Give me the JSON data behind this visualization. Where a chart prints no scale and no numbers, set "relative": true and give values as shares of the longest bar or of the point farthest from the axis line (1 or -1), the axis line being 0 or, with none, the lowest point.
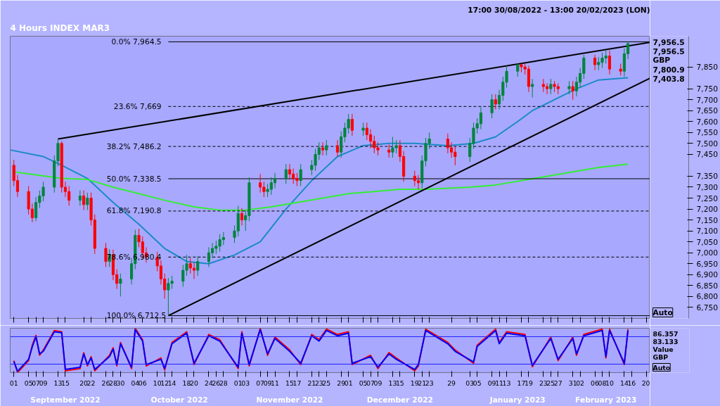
{
  "chart_data": [
    {
      "type": "candlestick",
      "title": "4 Hours INDEX MAR3",
      "subtitle": "17:00 30/08/2022 - 13:00 20/02/2023 (LON)",
      "x": [
        "2022-09-01",
        "2022-09-02",
        "2022-09-05",
        "2022-09-06",
        "2022-09-07",
        "2022-09-08",
        "2022-09-09",
        "2022-09-12",
        "2022-09-13",
        "2022-09-14",
        "2022-09-15",
        "2022-09-16",
        "2022-09-19",
        "2022-09-20",
        "2022-09-21",
        "2022-09-22",
        "2022-09-23",
        "2022-09-26",
        "2022-09-27",
        "2022-09-28",
        "2022-09-29",
        "2022-09-30",
        "2022-10-03",
        "2022-10-04",
        "2022-10-05",
        "2022-10-06",
        "2022-10-07",
        "2022-10-10",
        "2022-10-11",
        "2022-10-12",
        "2022-10-13",
        "2022-10-14",
        "2022-10-17",
        "2022-10-18",
        "2022-10-19",
        "2022-10-20",
        "2022-10-21",
        "2022-10-24",
        "2022-10-25",
        "2022-10-26",
        "2022-10-27",
        "2022-10-28",
        "2022-10-31",
        "2022-11-01",
        "2022-11-02",
        "2022-11-03",
        "2022-11-04",
        "2022-11-07",
        "2022-11-08",
        "2022-11-09",
        "2022-11-10",
        "2022-11-11",
        "2022-11-14",
        "2022-11-15",
        "2022-11-16",
        "2022-11-17",
        "2022-11-18",
        "2022-11-21",
        "2022-11-22",
        "2022-11-23",
        "2022-11-24",
        "2022-11-25",
        "2022-11-28",
        "2022-11-29",
        "2022-11-30",
        "2022-12-01",
        "2022-12-02",
        "2022-12-05",
        "2022-12-06",
        "2022-12-07",
        "2022-12-08",
        "2022-12-09",
        "2022-12-12",
        "2022-12-13",
        "2022-12-14",
        "2022-12-15",
        "2022-12-16",
        "2022-12-19",
        "2022-12-20",
        "2022-12-21",
        "2022-12-22",
        "2022-12-23",
        "2022-12-28",
        "2022-12-29",
        "2022-12-30",
        "2023-01-03",
        "2023-01-04",
        "2023-01-05",
        "2023-01-06",
        "2023-01-09",
        "2023-01-10",
        "2023-01-11",
        "2023-01-12",
        "2023-01-13",
        "2023-01-16",
        "2023-01-17",
        "2023-01-18",
        "2023-01-19",
        "2023-01-20",
        "2023-01-23",
        "2023-01-24",
        "2023-01-25",
        "2023-01-26",
        "2023-01-27",
        "2023-01-30",
        "2023-01-31",
        "2023-02-01",
        "2023-02-02",
        "2023-02-03",
        "2023-02-06",
        "2023-02-07",
        "2023-02-08",
        "2023-02-09",
        "2023-02-10",
        "2023-02-13",
        "2023-02-14",
        "2023-02-15"
      ],
      "ohlc": [
        [
          7400,
          7425,
          7305,
          7330
        ],
        [
          7330,
          7355,
          7255,
          7280
        ],
        [
          7280,
          7305,
          7175,
          7200
        ],
        [
          7200,
          7225,
          7140,
          7160
        ],
        [
          7160,
          7255,
          7145,
          7230
        ],
        [
          7230,
          7285,
          7205,
          7260
        ],
        [
          7260,
          7325,
          7235,
          7300
        ],
        [
          7300,
          7445,
          7275,
          7420
        ],
        [
          7420,
          7520,
          7395,
          7500
        ],
        [
          7500,
          7510,
          7275,
          7300
        ],
        [
          7300,
          7325,
          7255,
          7280
        ],
        [
          7280,
          7305,
          7215,
          7240
        ],
        [
          7240,
          7285,
          7215,
          7260
        ],
        [
          7260,
          7285,
          7195,
          7220
        ],
        [
          7220,
          7275,
          7195,
          7250
        ],
        [
          7250,
          7275,
          7125,
          7150
        ],
        [
          7150,
          7175,
          6995,
          7020
        ],
        [
          7020,
          7045,
          6935,
          6960
        ],
        [
          6960,
          7015,
          6935,
          6990
        ],
        [
          6990,
          7015,
          6875,
          6900
        ],
        [
          6900,
          6925,
          6835,
          6860
        ],
        [
          6860,
          6905,
          6800,
          6880
        ],
        [
          6880,
          6975,
          6855,
          6950
        ],
        [
          6950,
          7105,
          6925,
          7080
        ],
        [
          7080,
          7110,
          7025,
          7050
        ],
        [
          7050,
          7075,
          6975,
          7000
        ],
        [
          7000,
          7025,
          6955,
          6980
        ],
        [
          6980,
          7005,
          6915,
          6940
        ],
        [
          6940,
          6965,
          6855,
          6880
        ],
        [
          6880,
          6905,
          6790,
          6830
        ],
        [
          6830,
          6885,
          6712.5,
          6860
        ],
        [
          6860,
          6895,
          6835,
          6870
        ],
        [
          6870,
          6945,
          6845,
          6920
        ],
        [
          6920,
          6990,
          6895,
          6950
        ],
        [
          6950,
          6975,
          6905,
          6930
        ],
        [
          6930,
          6955,
          6880,
          6920
        ],
        [
          6920,
          6985,
          6895,
          6960
        ],
        [
          6960,
          7025,
          6935,
          7000
        ],
        [
          7000,
          7045,
          6975,
          7020
        ],
        [
          7020,
          7055,
          6995,
          7030
        ],
        [
          7030,
          7085,
          7005,
          7060
        ],
        [
          7060,
          7095,
          7035,
          7070
        ],
        [
          7070,
          7125,
          7045,
          7100
        ],
        [
          7100,
          7215,
          7075,
          7180
        ],
        [
          7180,
          7205,
          7125,
          7150
        ],
        [
          7150,
          7195,
          7100,
          7170
        ],
        [
          7170,
          7345,
          7145,
          7320
        ],
        [
          7320,
          7360,
          7275,
          7300
        ],
        [
          7300,
          7325,
          7255,
          7280
        ],
        [
          7280,
          7315,
          7255,
          7290
        ],
        [
          7290,
          7345,
          7265,
          7320
        ],
        [
          7320,
          7365,
          7295,
          7340
        ],
        [
          7340,
          7405,
          7315,
          7380
        ],
        [
          7380,
          7405,
          7335,
          7360
        ],
        [
          7360,
          7385,
          7315,
          7340
        ],
        [
          7340,
          7365,
          7305,
          7330
        ],
        [
          7330,
          7405,
          7305,
          7380
        ],
        [
          7380,
          7425,
          7355,
          7400
        ],
        [
          7400,
          7475,
          7375,
          7450
        ],
        [
          7450,
          7505,
          7425,
          7480
        ],
        [
          7480,
          7505,
          7445,
          7470
        ],
        [
          7470,
          7515,
          7445,
          7490
        ],
        [
          7490,
          7515,
          7440,
          7460
        ],
        [
          7460,
          7555,
          7435,
          7530
        ],
        [
          7530,
          7595,
          7505,
          7570
        ],
        [
          7570,
          7635,
          7545,
          7610
        ],
        [
          7610,
          7635,
          7535,
          7560
        ],
        [
          7560,
          7595,
          7535,
          7570
        ],
        [
          7570,
          7595,
          7515,
          7540
        ],
        [
          7540,
          7565,
          7478,
          7510
        ],
        [
          7510,
          7535,
          7455,
          7480
        ],
        [
          7480,
          7505,
          7445,
          7470
        ],
        [
          7470,
          7495,
          7435,
          7460
        ],
        [
          7460,
          7530,
          7435,
          7480
        ],
        [
          7480,
          7515,
          7455,
          7490
        ],
        [
          7490,
          7515,
          7415,
          7440
        ],
        [
          7440,
          7465,
          7325,
          7350
        ],
        [
          7350,
          7375,
          7305,
          7330
        ],
        [
          7330,
          7355,
          7290,
          7320
        ],
        [
          7320,
          7445,
          7295,
          7420
        ],
        [
          7420,
          7525,
          7395,
          7500
        ],
        [
          7500,
          7550,
          7475,
          7520
        ],
        [
          7520,
          7545,
          7455,
          7480
        ],
        [
          7480,
          7505,
          7435,
          7460
        ],
        [
          7460,
          7485,
          7400,
          7440
        ],
        [
          7440,
          7525,
          7415,
          7500
        ],
        [
          7500,
          7595,
          7475,
          7570
        ],
        [
          7570,
          7615,
          7545,
          7590
        ],
        [
          7590,
          7665,
          7565,
          7640
        ],
        [
          7640,
          7725,
          7615,
          7700
        ],
        [
          7700,
          7725,
          7655,
          7680
        ],
        [
          7680,
          7745,
          7655,
          7720
        ],
        [
          7720,
          7805,
          7695,
          7780
        ],
        [
          7780,
          7855,
          7755,
          7830
        ],
        [
          7830,
          7865,
          7805,
          7860
        ],
        [
          7860,
          7865,
          7825,
          7850
        ],
        [
          7850,
          7865,
          7815,
          7840
        ],
        [
          7840,
          7855,
          7735,
          7760
        ],
        [
          7760,
          7795,
          7710,
          7770
        ],
        [
          7770,
          7795,
          7735,
          7760
        ],
        [
          7760,
          7775,
          7725,
          7750
        ],
        [
          7750,
          7795,
          7725,
          7770
        ],
        [
          7770,
          7785,
          7735,
          7760
        ],
        [
          7760,
          7775,
          7725,
          7750
        ],
        [
          7750,
          7785,
          7725,
          7760
        ],
        [
          7760,
          7785,
          7700,
          7740
        ],
        [
          7740,
          7805,
          7715,
          7780
        ],
        [
          7780,
          7845,
          7755,
          7820
        ],
        [
          7820,
          7905,
          7795,
          7890
        ],
        [
          7890,
          7905,
          7835,
          7860
        ],
        [
          7860,
          7895,
          7835,
          7870
        ],
        [
          7870,
          7915,
          7845,
          7890
        ],
        [
          7890,
          7925,
          7865,
          7900
        ],
        [
          7900,
          7925,
          7815,
          7840
        ],
        [
          7840,
          7865,
          7810,
          7830
        ],
        [
          7830,
          7935,
          7805,
          7910
        ],
        [
          7910,
          7964.5,
          7885,
          7956.5
        ]
      ],
      "colors": [
        "#ff0000",
        "#ff0000",
        "#ff0000",
        "#ff0000",
        "#00843d",
        "#00843d",
        "#00843d",
        "#00843d",
        "#00843d",
        "#ff0000",
        "#ff0000",
        "#ff0000",
        "#00843d",
        "#ff0000",
        "#00843d",
        "#ff0000",
        "#ff0000",
        "#ff0000",
        "#00843d",
        "#ff0000",
        "#ff0000",
        "#00843d",
        "#00843d",
        "#00843d",
        "#ff0000",
        "#ff0000",
        "#ff0000",
        "#ff0000",
        "#ff0000",
        "#ff0000",
        "#00843d",
        "#00843d",
        "#00843d",
        "#00843d",
        "#ff0000",
        "#ff0000",
        "#00843d",
        "#00843d",
        "#00843d",
        "#00843d",
        "#00843d",
        "#00843d",
        "#00843d",
        "#00843d",
        "#ff0000",
        "#00843d",
        "#00843d",
        "#ff0000",
        "#ff0000",
        "#00843d",
        "#00843d",
        "#00843d",
        "#00843d",
        "#ff0000",
        "#ff0000",
        "#ff0000",
        "#00843d",
        "#00843d",
        "#00843d",
        "#00843d",
        "#ff0000",
        "#00843d",
        "#ff0000",
        "#00843d",
        "#00843d",
        "#00843d",
        "#ff0000",
        "#00843d",
        "#ff0000",
        "#ff0000",
        "#ff0000",
        "#ff0000",
        "#ff0000",
        "#00843d",
        "#00843d",
        "#ff0000",
        "#ff0000",
        "#ff0000",
        "#ff0000",
        "#00843d",
        "#00843d",
        "#00843d",
        "#ff0000",
        "#ff0000",
        "#ff0000",
        "#00843d",
        "#00843d",
        "#00843d",
        "#00843d",
        "#00843d",
        "#ff0000",
        "#00843d",
        "#00843d",
        "#00843d",
        "#00843d",
        "#ff0000",
        "#ff0000",
        "#ff0000",
        "#00843d",
        "#ff0000",
        "#ff0000",
        "#00843d",
        "#ff0000",
        "#ff0000",
        "#00843d",
        "#ff0000",
        "#00843d",
        "#00843d",
        "#00843d",
        "#ff0000",
        "#00843d",
        "#00843d",
        "#00843d",
        "#ff0000",
        "#ff0000",
        "#00843d",
        "#00843d"
      ],
      "series": [
        {
          "type": "line",
          "color": "#1a8ac6",
          "x": [
            "2022-08-31",
            "2022-09-09",
            "2022-09-14",
            "2022-09-21",
            "2022-09-28",
            "2022-10-05",
            "2022-10-12",
            "2022-10-18",
            "2022-10-24",
            "2022-10-31",
            "2022-11-07",
            "2022-11-14",
            "2022-11-21",
            "2022-11-28",
            "2022-12-05",
            "2022-12-12",
            "2022-12-19",
            "2022-12-28",
            "2023-01-04",
            "2023-01-10",
            "2023-01-16",
            "2023-01-20",
            "2023-01-26",
            "2023-02-01",
            "2023-02-07",
            "2023-02-15"
          ],
          "values": [
            7470,
            7440,
            7400,
            7340,
            7230,
            7130,
            7020,
            6960,
            6950,
            6990,
            7050,
            7200,
            7330,
            7440,
            7490,
            7500,
            7500,
            7490,
            7500,
            7530,
            7600,
            7650,
            7700,
            7750,
            7790,
            7800
          ]
        },
        {
          "type": "line",
          "color": "#33ee33",
          "x": [
            "2022-09-01",
            "2022-09-14",
            "2022-09-21",
            "2022-09-28",
            "2022-10-05",
            "2022-10-12",
            "2022-10-20",
            "2022-10-27",
            "2022-11-03",
            "2022-11-10",
            "2022-11-17",
            "2022-11-24",
            "2022-12-01",
            "2022-12-08",
            "2022-12-15",
            "2022-12-22",
            "2023-01-03",
            "2023-01-10",
            "2023-01-17",
            "2023-01-24",
            "2023-01-31",
            "2023-02-07",
            "2023-02-15"
          ],
          "values": [
            7370,
            7340,
            7335,
            7300,
            7270,
            7240,
            7210,
            7195,
            7195,
            7210,
            7230,
            7250,
            7270,
            7280,
            7290,
            7290,
            7300,
            7310,
            7330,
            7350,
            7370,
            7390,
            7405
          ]
        },
        {
          "type": "line",
          "color": "#000000",
          "x": [
            "2022-09-13",
            "2023-02-21"
          ],
          "values": [
            7520,
            7962
          ]
        },
        {
          "type": "line",
          "color": "#000000",
          "x": [
            "2022-10-13",
            "2023-02-21"
          ],
          "values": [
            6712.5,
            7798
          ]
        }
      ],
      "xlim": [
        "2022-08-31",
        "2023-02-21"
      ],
      "ylim": [
        6700,
        7990
      ],
      "xticks": [
        {
          "value": "2022-09-01",
          "label": null
        },
        {
          "value": "2022-09-05",
          "label": null
        },
        {
          "value": "2022-09-07",
          "label": null
        },
        {
          "value": "2022-09-09",
          "label": null
        },
        {
          "value": "2022-09-13",
          "label": null
        },
        {
          "value": "2022-09-15",
          "label": null
        },
        {
          "value": "2022-09-20",
          "label": null
        },
        {
          "value": "2022-09-22",
          "label": null
        },
        {
          "value": "2022-09-26",
          "label": null
        },
        {
          "value": "2022-09-28",
          "label": null
        },
        {
          "value": "2022-09-30",
          "label": null
        },
        {
          "value": "2022-10-04",
          "label": null
        },
        {
          "value": "2022-10-06",
          "label": null
        },
        {
          "value": "2022-10-10",
          "label": null
        },
        {
          "value": "2022-10-12",
          "label": null
        },
        {
          "value": "2022-10-14",
          "label": null
        },
        {
          "value": "2022-10-18",
          "label": null
        },
        {
          "value": "2022-10-20",
          "label": null
        },
        {
          "value": "2022-10-24",
          "label": null
        },
        {
          "value": "2022-10-26",
          "label": null
        },
        {
          "value": "2022-10-28",
          "label": null
        },
        {
          "value": "2022-11-01",
          "label": null
        },
        {
          "value": "2022-11-03",
          "label": null
        },
        {
          "value": "2022-11-07",
          "label": null
        },
        {
          "value": "2022-11-09",
          "label": null
        },
        {
          "value": "2022-11-11",
          "label": null
        },
        {
          "value": "2022-11-15",
          "label": null
        },
        {
          "value": "2022-11-17",
          "label": null
        },
        {
          "value": "2022-11-21",
          "label": null
        },
        {
          "value": "2022-11-23",
          "label": null
        },
        {
          "value": "2022-11-25",
          "label": null
        },
        {
          "value": "2022-11-29",
          "label": null
        },
        {
          "value": "2022-12-01",
          "label": null
        },
        {
          "value": "2022-12-05",
          "label": null
        },
        {
          "value": "2022-12-07",
          "label": null
        },
        {
          "value": "2022-12-09",
          "label": null
        },
        {
          "value": "2022-12-13",
          "label": null
        },
        {
          "value": "2022-12-15",
          "label": null
        },
        {
          "value": "2022-12-19",
          "label": null
        },
        {
          "value": "2022-12-21",
          "label": null
        },
        {
          "value": "2022-12-23",
          "label": null
        },
        {
          "value": "2022-12-29",
          "label": null
        },
        {
          "value": "2023-01-03",
          "label": null
        },
        {
          "value": "2023-01-05",
          "label": null
        },
        {
          "value": "2023-01-09",
          "label": null
        },
        {
          "value": "2023-01-11",
          "label": null
        },
        {
          "value": "2023-01-13",
          "label": null
        },
        {
          "value": "2023-01-17",
          "label": null
        },
        {
          "value": "2023-01-19",
          "label": null
        },
        {
          "value": "2023-01-23",
          "label": null
        },
        {
          "value": "2023-01-25",
          "label": null
        },
        {
          "value": "2023-01-27",
          "label": null
        },
        {
          "value": "2023-01-31",
          "label": null
        },
        {
          "value": "2023-02-02",
          "label": null
        },
        {
          "value": "2023-02-06",
          "label": null
        },
        {
          "value": "2023-02-08",
          "label": null
        },
        {
          "value": "2023-02-10",
          "label": null
        },
        {
          "value": "2023-02-14",
          "label": null
        },
        {
          "value": "2023-02-16",
          "label": null
        },
        {
          "value": "2023-02-20",
          "label": null
        }
      ],
      "yticks": [
        {
          "value": 6750,
          "label": "6,750"
        },
        {
          "value": 6800,
          "label": "6,800"
        },
        {
          "value": 6850,
          "label": "6,850"
        },
        {
          "value": 6900,
          "label": "6,900"
        },
        {
          "value": 6950,
          "label": "6,950"
        },
        {
          "value": 7000,
          "label": "7,000"
        },
        {
          "value": 7050,
          "label": "7,050"
        },
        {
          "value": 7100,
          "label": "7,100"
        },
        {
          "value": 7150,
          "label": "7,150"
        },
        {
          "value": 7200,
          "label": "7,200"
        },
        {
          "value": 7250,
          "label": "7,250"
        },
        {
          "value": 7300,
          "label": "7,300"
        },
        {
          "value": 7350,
          "label": "7,350"
        },
        {
          "value": 7450,
          "label": "7,450"
        },
        {
          "value": 7500,
          "label": "7,500"
        },
        {
          "value": 7550,
          "label": "7,550"
        },
        {
          "value": 7600,
          "label": "7,600"
        },
        {
          "value": 7650,
          "label": "7,650"
        },
        {
          "value": 7700,
          "label": "7,700"
        },
        {
          "value": 7750,
          "label": "7,750"
        },
        {
          "value": 7850,
          "label": "7,850"
        }
      ],
      "tick_labels": "y",
      "ref_lines": [
        {
          "axis": "y",
          "value": 7964.5,
          "label": "0.0%   7,964.5",
          "color": "#000000",
          "line_style": "solid"
        },
        {
          "axis": "y",
          "value": 7669,
          "label": "23.6%   7,669",
          "color": "#000000",
          "line_style": "dashed"
        },
        {
          "axis": "y",
          "value": 7486.2,
          "label": "38.2%   7,486.2",
          "color": "#000000",
          "line_style": "dashed"
        },
        {
          "axis": "y",
          "value": 7338.5,
          "label": "50.0%   7,338.5",
          "color": "#000000",
          "line_style": "solid"
        },
        {
          "axis": "y",
          "value": 7190.8,
          "label": "61.8%   7,190.8",
          "color": "#000000",
          "line_style": "dashed"
        },
        {
          "axis": "y",
          "value": 6980.4,
          "label": "78.6%   6,980.4",
          "color": "#000000",
          "line_style": "dashed"
        },
        {
          "axis": "y",
          "value": 6712.5,
          "label": "100.0% 6,712.5",
          "color": "#000000",
          "line_style": "solid"
        }
      ],
      "annotations": [
        "7,956.5",
        "7,956.5",
        "GBP",
        "7,800.9",
        "7,403.8",
        "Auto"
      ]
    },
    {
      "type": "line",
      "relative": true,
      "x": [
        "2022-09-01",
        "2022-09-02",
        "2022-09-05",
        "2022-09-06",
        "2022-09-07",
        "2022-09-08",
        "2022-09-09",
        "2022-09-12",
        "2022-09-14",
        "2022-09-15",
        "2022-09-19",
        "2022-09-20",
        "2022-09-21",
        "2022-09-22",
        "2022-09-23",
        "2022-09-27",
        "2022-09-28",
        "2022-09-29",
        "2022-09-30",
        "2022-10-03",
        "2022-10-04",
        "2022-10-06",
        "2022-10-07",
        "2022-10-11",
        "2022-10-12",
        "2022-10-14",
        "2022-10-18",
        "2022-10-20",
        "2022-10-24",
        "2022-10-27",
        "2022-11-01",
        "2022-11-02",
        "2022-11-04",
        "2022-11-07",
        "2022-11-09",
        "2022-11-11",
        "2022-11-15",
        "2022-11-18",
        "2022-11-21",
        "2022-11-23",
        "2022-11-25",
        "2022-11-28",
        "2022-12-01",
        "2022-12-02",
        "2022-12-07",
        "2022-12-09",
        "2022-12-12",
        "2022-12-14",
        "2022-12-19",
        "2022-12-20",
        "2022-12-22",
        "2022-12-28",
        "2022-12-30",
        "2023-01-04",
        "2023-01-05",
        "2023-01-10",
        "2023-01-11",
        "2023-01-13",
        "2023-01-18",
        "2023-01-20",
        "2023-01-25",
        "2023-01-27",
        "2023-01-31",
        "2023-02-01",
        "2023-02-03",
        "2023-02-08",
        "2023-02-09",
        "2023-02-10",
        "2023-02-14",
        "2023-02-15"
      ],
      "series": [
        {
          "color": "#ff0000",
          "values": [
            0.27,
            0,
            0.27,
            0.62,
            0.84,
            0.39,
            0.51,
            0.95,
            0.92,
            0.04,
            0.09,
            0.45,
            0.15,
            0.36,
            0.04,
            0.39,
            0.56,
            0.15,
            0.68,
            0.09,
            1,
            0.74,
            0.15,
            0.33,
            0.06,
            0.68,
            0.92,
            0.18,
            0.86,
            0.74,
            0.09,
            0.92,
            0.15,
            1,
            0.39,
            0.8,
            0.51,
            0.18,
            0.86,
            0.74,
            0.98,
            0.86,
            0.92,
            0.18,
            0.39,
            0.09,
            0.45,
            0.33,
            0.04,
            0.15,
            0.98,
            0.68,
            0.51,
            0.21,
            0.62,
            0.98,
            0.68,
            0.92,
            0.86,
            0.13,
            0.8,
            0.27,
            0.8,
            0.39,
            0.86,
            0.98,
            0.33,
            0.98,
            0.18,
            0.98
          ]
        },
        {
          "color": "#0000ff",
          "values": [
            0.25,
            0.03,
            0.3,
            0.58,
            0.81,
            0.42,
            0.48,
            0.92,
            0.9,
            0.07,
            0.12,
            0.42,
            0.18,
            0.33,
            0.07,
            0.36,
            0.53,
            0.18,
            0.65,
            0.12,
            0.97,
            0.71,
            0.18,
            0.3,
            0.09,
            0.65,
            0.89,
            0.21,
            0.83,
            0.71,
            0.12,
            0.89,
            0.18,
            0.97,
            0.42,
            0.77,
            0.48,
            0.21,
            0.83,
            0.71,
            0.95,
            0.83,
            0.89,
            0.21,
            0.36,
            0.12,
            0.42,
            0.3,
            0.07,
            0.18,
            0.95,
            0.65,
            0.48,
            0.24,
            0.59,
            0.95,
            0.65,
            0.89,
            0.83,
            0.16,
            0.77,
            0.3,
            0.77,
            0.42,
            0.83,
            0.95,
            0.36,
            0.95,
            0.21,
            0.95
          ]
        }
      ],
      "ref_lines": [
        {
          "axis": "y",
          "value": 0.81,
          "color": "#2020ff",
          "line_style": "solid"
        },
        {
          "axis": "y",
          "value": 0.19,
          "color": "#2020ff",
          "line_style": "solid"
        }
      ],
      "xlim": [
        "2022-08-31",
        "2023-02-21"
      ],
      "xticks": [
        {
          "value": "2022-09-01",
          "label": "01"
        },
        {
          "value": "2022-09-05",
          "label": "05"
        },
        {
          "value": "2022-09-07",
          "label": "07"
        },
        {
          "value": "2022-09-09",
          "label": "09"
        },
        {
          "value": "2022-09-13",
          "label": "13"
        },
        {
          "value": "2022-09-15",
          "label": "15"
        },
        {
          "value": "2022-09-20",
          "label": "20"
        },
        {
          "value": "2022-09-22",
          "label": "22"
        },
        {
          "value": "2022-09-26",
          "label": "26"
        },
        {
          "value": "2022-09-28",
          "label": "28"
        },
        {
          "value": "2022-09-30",
          "label": "30"
        },
        {
          "value": "2022-10-04",
          "label": "04"
        },
        {
          "value": "2022-10-06",
          "label": "06"
        },
        {
          "value": "2022-10-10",
          "label": "10"
        },
        {
          "value": "2022-10-12",
          "label": "12"
        },
        {
          "value": "2022-10-14",
          "label": "14"
        },
        {
          "value": "2022-10-18",
          "label": "18"
        },
        {
          "value": "2022-10-20",
          "label": "20"
        },
        {
          "value": "2022-10-24",
          "label": "24"
        },
        {
          "value": "2022-10-26",
          "label": "26"
        },
        {
          "value": "2022-10-28",
          "label": "28"
        },
        {
          "value": "2022-11-01",
          "label": "01"
        },
        {
          "value": "2022-11-03",
          "label": "03"
        },
        {
          "value": "2022-11-07",
          "label": "07"
        },
        {
          "value": "2022-11-09",
          "label": "09"
        },
        {
          "value": "2022-11-11",
          "label": "11"
        },
        {
          "value": "2022-11-15",
          "label": "15"
        },
        {
          "value": "2022-11-17",
          "label": "17"
        },
        {
          "value": "2022-11-21",
          "label": "21"
        },
        {
          "value": "2022-11-23",
          "label": "23"
        },
        {
          "value": "2022-11-25",
          "label": "25"
        },
        {
          "value": "2022-11-29",
          "label": "29"
        },
        {
          "value": "2022-12-01",
          "label": "01"
        },
        {
          "value": "2022-12-05",
          "label": "05"
        },
        {
          "value": "2022-12-07",
          "label": "07"
        },
        {
          "value": "2022-12-09",
          "label": "09"
        },
        {
          "value": "2022-12-13",
          "label": "13"
        },
        {
          "value": "2022-12-15",
          "label": "15"
        },
        {
          "value": "2022-12-19",
          "label": "19"
        },
        {
          "value": "2022-12-21",
          "label": "21"
        },
        {
          "value": "2022-12-23",
          "label": "23"
        },
        {
          "value": "2022-12-29",
          "label": "29"
        },
        {
          "value": "2023-01-03",
          "label": "03"
        },
        {
          "value": "2023-01-05",
          "label": "05"
        },
        {
          "value": "2023-01-09",
          "label": "09"
        },
        {
          "value": "2023-01-11",
          "label": "11"
        },
        {
          "value": "2023-01-13",
          "label": "13"
        },
        {
          "value": "2023-01-17",
          "label": "17"
        },
        {
          "value": "2023-01-19",
          "label": "19"
        },
        {
          "value": "2023-01-23",
          "label": "23"
        },
        {
          "value": "2023-01-25",
          "label": "25"
        },
        {
          "value": "2023-01-27",
          "label": "27"
        },
        {
          "value": "2023-01-31",
          "label": "31"
        },
        {
          "value": "2023-02-02",
          "label": "02"
        },
        {
          "value": "2023-02-06",
          "label": "06"
        },
        {
          "value": "2023-02-08",
          "label": "08"
        },
        {
          "value": "2023-02-10",
          "label": "10"
        },
        {
          "value": "2023-02-14",
          "label": "14"
        },
        {
          "value": "2023-02-16",
          "label": "16"
        },
        {
          "value": "2023-02-20",
          "label": "20"
        }
      ],
      "tick_labels": "x",
      "annotations": [
        "86.357",
        "83.133",
        "Value",
        "GBP",
        "Auto"
      ],
      "x2lim": [
        "2022-08-31",
        "2023-02-21"
      ],
      "x2ticks": [
        {
          "value": "2022-09-15",
          "label": "September 2022"
        },
        {
          "value": "2022-10-16",
          "label": "October 2022"
        },
        {
          "value": "2022-11-15",
          "label": "November 2022"
        },
        {
          "value": "2022-12-15",
          "label": "December 2022"
        },
        {
          "value": "2023-01-16",
          "label": "January 2023"
        },
        {
          "value": "2023-02-09",
          "label": "February 2023"
        }
      ]
    }
  ]
}
